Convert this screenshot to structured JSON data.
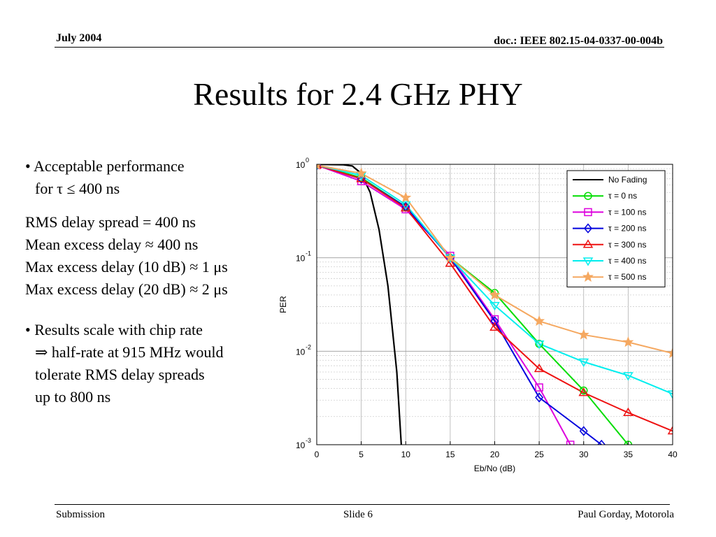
{
  "header": {
    "date": "July 2004",
    "doc": "doc.: IEEE 802.15-04-0337-00-004b"
  },
  "title": "Results for 2.4 GHz PHY",
  "bullets": {
    "b1_line1": "• Acceptable performance",
    "b1_line2": "for τ ≤ 400 ns",
    "p1": "RMS delay spread = 400 ns",
    "p2": "Mean excess delay ≈ 400 ns",
    "p3": "Max excess delay (10 dB) ≈ 1 μs",
    "p4": "Max excess delay (20 dB) ≈ 2 μs",
    "b2_line1": "• Results scale with chip rate",
    "b2_line2": "⇒ half-rate at 915 MHz would",
    "b2_line3": "tolerate RMS delay spreads",
    "b2_line4": "up to 800 ns"
  },
  "footer": {
    "left": "Submission",
    "center": "Slide 6",
    "right": "Paul Gorday, Motorola"
  },
  "chart_data": {
    "type": "line",
    "xlabel": "Eb/No (dB)",
    "ylabel": "PER",
    "xlim": [
      0,
      40
    ],
    "ylim": [
      0.001,
      1
    ],
    "yscale": "log",
    "grid": true,
    "legend_position": "top-right",
    "xticks": [
      "0",
      "5",
      "10",
      "15",
      "20",
      "25",
      "30",
      "35",
      "40"
    ],
    "yticks": [
      {
        "base": "10",
        "exp": "0",
        "value": 1
      },
      {
        "base": "10",
        "exp": "-1",
        "value": 0.1
      },
      {
        "base": "10",
        "exp": "-2",
        "value": 0.01
      },
      {
        "base": "10",
        "exp": "-3",
        "value": 0.001
      }
    ],
    "series": [
      {
        "name": "No Fading",
        "color": "#000000",
        "marker": "none",
        "x": [
          0,
          3,
          4,
          5,
          6,
          7,
          8,
          9,
          9.5
        ],
        "y": [
          1.0,
          0.99,
          0.96,
          0.8,
          0.5,
          0.2,
          0.05,
          0.006,
          0.001
        ]
      },
      {
        "name": "τ = 0 ns",
        "color": "#00dd00",
        "marker": "circle",
        "x": [
          0,
          5,
          10,
          15,
          20,
          25,
          30,
          35
        ],
        "y": [
          0.98,
          0.72,
          0.35,
          0.1,
          0.042,
          0.012,
          0.0038,
          0.001
        ]
      },
      {
        "name": "τ = 100 ns",
        "color": "#dd00dd",
        "marker": "square",
        "x": [
          0,
          5,
          10,
          15,
          20,
          25,
          28.5
        ],
        "y": [
          0.98,
          0.66,
          0.33,
          0.105,
          0.022,
          0.0041,
          0.001
        ]
      },
      {
        "name": "τ = 200 ns",
        "color": "#0000dd",
        "marker": "diamond",
        "x": [
          0,
          5,
          10,
          15,
          20,
          25,
          30,
          32
        ],
        "y": [
          0.98,
          0.7,
          0.35,
          0.1,
          0.021,
          0.0032,
          0.0014,
          0.001
        ]
      },
      {
        "name": "τ = 300 ns",
        "color": "#ee1111",
        "marker": "triangle-up",
        "x": [
          0,
          5,
          10,
          15,
          20,
          25,
          30,
          35,
          40
        ],
        "y": [
          0.98,
          0.7,
          0.34,
          0.087,
          0.018,
          0.0065,
          0.0036,
          0.0022,
          0.0014
        ]
      },
      {
        "name": "τ = 400 ns",
        "color": "#00eeee",
        "marker": "triangle-down",
        "x": [
          0,
          5,
          10,
          15,
          20,
          25,
          30,
          35,
          40
        ],
        "y": [
          0.98,
          0.76,
          0.37,
          0.1,
          0.031,
          0.012,
          0.0077,
          0.0055,
          0.0035
        ]
      },
      {
        "name": "τ = 500 ns",
        "color": "#f5a860",
        "marker": "star",
        "x": [
          0,
          5,
          10,
          15,
          20,
          25,
          30,
          35,
          40
        ],
        "y": [
          0.98,
          0.8,
          0.44,
          0.1,
          0.04,
          0.021,
          0.015,
          0.0125,
          0.0095
        ]
      }
    ]
  }
}
